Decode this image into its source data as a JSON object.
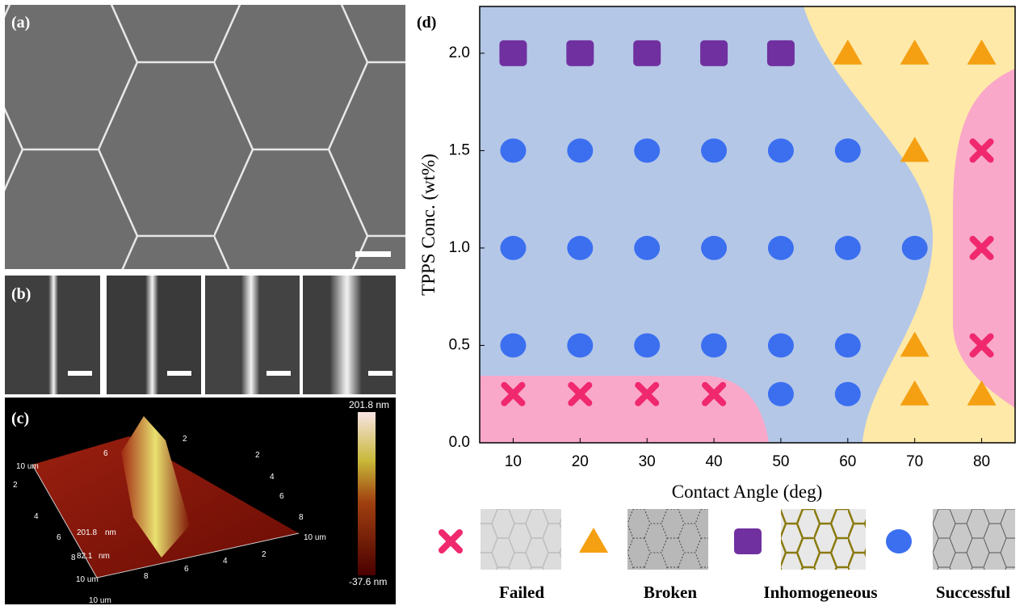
{
  "panel_labels": [
    "(a)",
    "(b)",
    "(c)",
    "(d)"
  ],
  "panel_c": {
    "colorbar_max": "201.8 nm",
    "colorbar_min": "-37.6 nm",
    "axis_labels": [
      "10 um",
      "2",
      "4",
      "6",
      "8",
      "10 um",
      "201.8",
      "nm",
      "82.1",
      "nm",
      "10 um",
      "8",
      "6",
      "4",
      "2",
      "10 um",
      "6",
      "2",
      "2",
      "4",
      "6",
      "8"
    ]
  },
  "chart_data": {
    "type": "scatter",
    "xlabel": "Contact Angle (deg)",
    "ylabel": "TPPS Conc. (wt%)",
    "xlim": [
      5,
      85
    ],
    "xticks": [
      10,
      20,
      30,
      40,
      50,
      60,
      70,
      80
    ],
    "ylim": [
      0,
      2.24
    ],
    "yticks": [
      {
        "value": 0,
        "label": "0.0"
      },
      0.5,
      {
        "value": 1,
        "label": "1.0"
      },
      1.5,
      {
        "value": 2,
        "label": "2.0"
      }
    ],
    "series": [
      {
        "name": "Failed",
        "marker": "x",
        "color": "#f0286e",
        "x": [
          80,
          80,
          80,
          10,
          20,
          30,
          40
        ],
        "values": [
          1.5,
          1.0,
          0.5,
          0.25,
          0.25,
          0.25,
          0.25
        ]
      },
      {
        "name": "Broken",
        "marker": "triangle",
        "color": "#f5a012",
        "x": [
          60,
          70,
          80,
          70,
          70,
          70,
          80
        ],
        "values": [
          2.0,
          2.0,
          2.0,
          1.5,
          0.5,
          0.25,
          0.25
        ]
      },
      {
        "name": "Inhomogeneous",
        "marker": "square",
        "color": "#7030a0",
        "x": [
          10,
          20,
          30,
          40,
          50
        ],
        "values": [
          2.0,
          2.0,
          2.0,
          2.0,
          2.0
        ]
      },
      {
        "name": "Successful",
        "marker": "circle",
        "color": "#3b6ff0",
        "x": [
          10,
          20,
          30,
          40,
          50,
          60,
          10,
          20,
          30,
          40,
          50,
          60,
          70,
          10,
          20,
          30,
          40,
          50,
          60,
          50,
          60
        ],
        "values": [
          1.5,
          1.5,
          1.5,
          1.5,
          1.5,
          1.5,
          1.0,
          1.0,
          1.0,
          1.0,
          1.0,
          1.0,
          1.0,
          0.5,
          0.5,
          0.5,
          0.5,
          0.5,
          0.5,
          0.25,
          0.25
        ]
      }
    ]
  }
}
